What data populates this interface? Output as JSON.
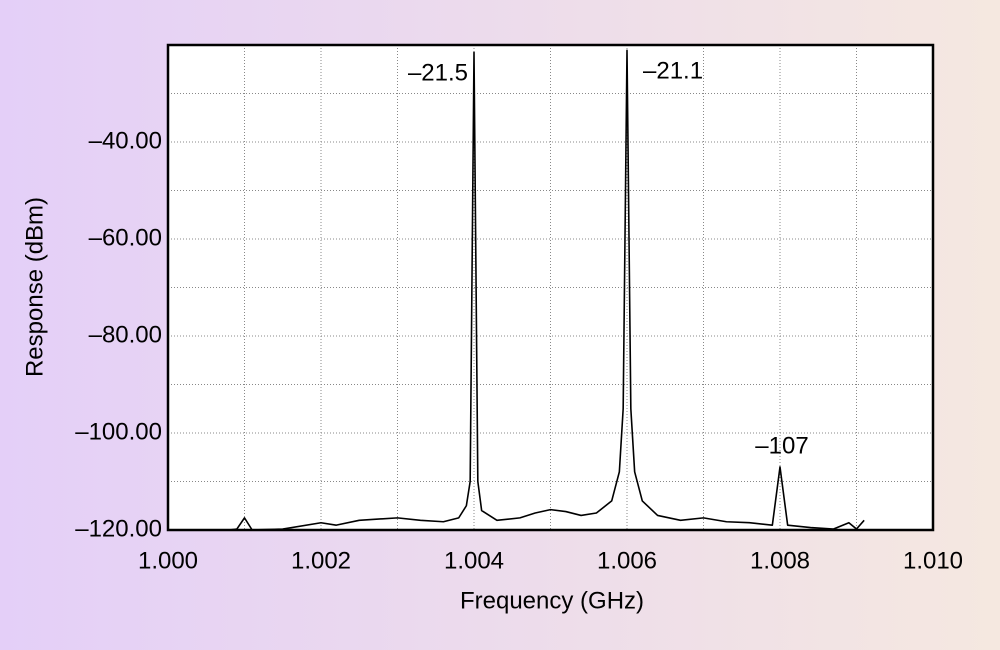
{
  "chart_data": {
    "type": "line",
    "x_label": "Frequency (GHz)",
    "y_label": "Response (dBm)",
    "color": "#000000",
    "grid": true,
    "xlim": [
      1.0,
      1.01
    ],
    "xticks": [
      {
        "value": 1.0,
        "label": "1.000"
      },
      {
        "value": 1.002,
        "label": "1.002"
      },
      {
        "value": 1.004,
        "label": "1.004"
      },
      {
        "value": 1.006,
        "label": "1.006"
      },
      {
        "value": 1.008,
        "label": "1.008"
      },
      {
        "value": 1.01,
        "label": "1.010"
      }
    ],
    "ylim": [
      -120,
      -20
    ],
    "yticks": [
      {
        "value": -120,
        "label": "–120.00"
      },
      {
        "value": -100,
        "label": "–100.00"
      },
      {
        "value": -80,
        "label": "–80.00"
      },
      {
        "value": -60,
        "label": "–60.00"
      },
      {
        "value": -40,
        "label": "–40.00"
      }
    ],
    "x": [
      1.0008,
      1.0009,
      1.001,
      1.0011,
      1.0015,
      1.002,
      1.0022,
      1.0025,
      1.003,
      1.0033,
      1.0036,
      1.0038,
      1.0039,
      1.00395,
      1.004,
      1.00405,
      1.0041,
      1.0043,
      1.0046,
      1.0048,
      1.005,
      1.0052,
      1.0054,
      1.0056,
      1.0058,
      1.0059,
      1.00595,
      1.006,
      1.00605,
      1.0061,
      1.0062,
      1.0064,
      1.0067,
      1.007,
      1.0073,
      1.0076,
      1.0079,
      1.008,
      1.0081,
      1.0084,
      1.0087,
      1.0089,
      1.009,
      1.0091
    ],
    "values": [
      -120,
      -119.8,
      -117.5,
      -120,
      -119.8,
      -118.5,
      -119,
      -118,
      -117.5,
      -118,
      -118.3,
      -117.5,
      -115,
      -110,
      -21.5,
      -110,
      -116,
      -118,
      -117.5,
      -116.5,
      -115.8,
      -116.2,
      -117,
      -116.5,
      -114,
      -108,
      -95,
      -21.1,
      -95,
      -108,
      -114,
      -117,
      -118,
      -117.5,
      -118.3,
      -118.5,
      -119,
      -107,
      -119,
      -119.5,
      -119.8,
      -118.5,
      -119.8,
      -118
    ],
    "annotations": [
      {
        "x": 1.004,
        "value": -21.5,
        "label": "–21.5"
      },
      {
        "x": 1.006,
        "value": -21.1,
        "label": "–21.1"
      },
      {
        "x": 1.008,
        "value": -107,
        "label": "–107"
      }
    ]
  }
}
